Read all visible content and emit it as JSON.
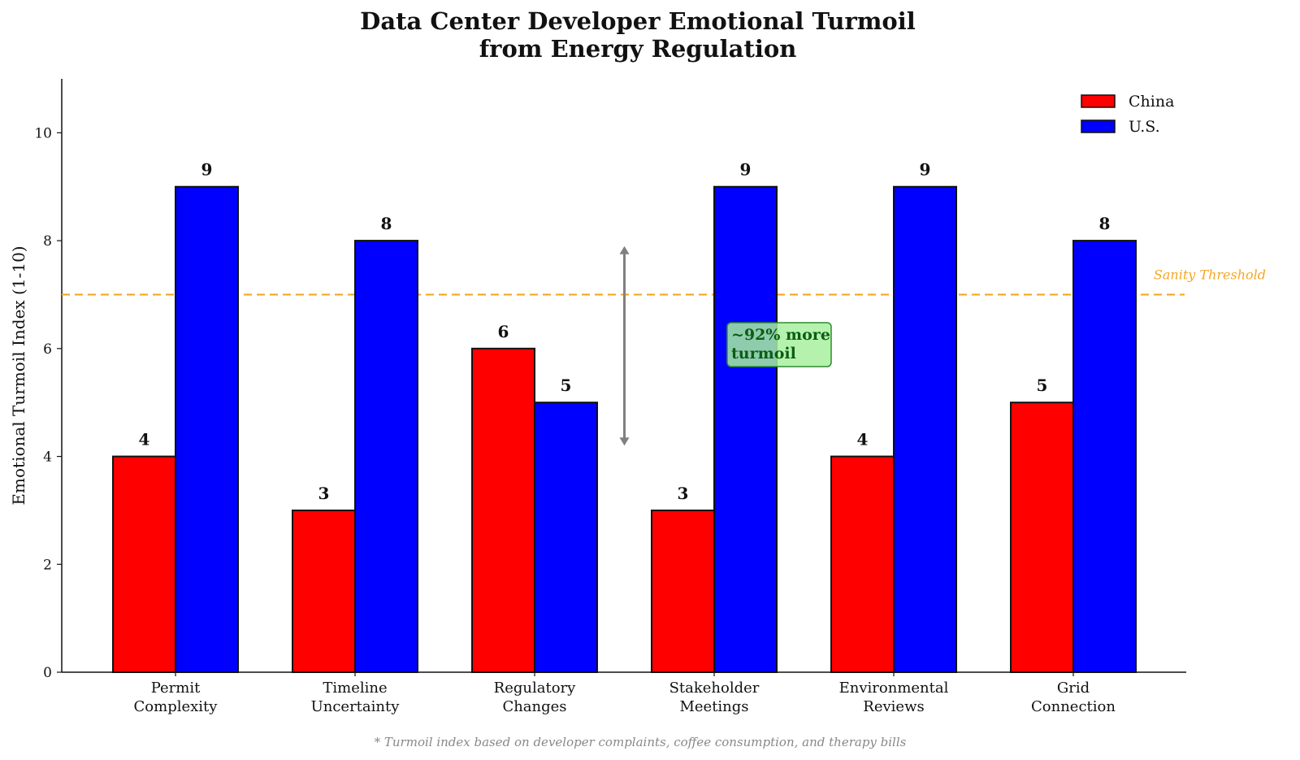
{
  "chart_data": {
    "type": "bar",
    "title_lines": [
      "Data Center Developer Emotional Turmoil",
      "from Energy Regulation"
    ],
    "xlabel": "",
    "ylabel": "Emotional Turmoil Index (1-10)",
    "ylim": [
      0,
      11
    ],
    "yticks": [
      0,
      2,
      4,
      6,
      8,
      10
    ],
    "categories": [
      [
        "Permit",
        "Complexity"
      ],
      [
        "Timeline",
        "Uncertainty"
      ],
      [
        "Regulatory",
        "Changes"
      ],
      [
        "Stakeholder",
        "Meetings"
      ],
      [
        "Environmental",
        "Reviews"
      ],
      [
        "Grid",
        "Connection"
      ]
    ],
    "series": [
      {
        "name": "China",
        "color": "#ff0000",
        "values": [
          4,
          3,
          6,
          3,
          4,
          5
        ]
      },
      {
        "name": "U.S.",
        "color": "#0000ff",
        "values": [
          9,
          8,
          5,
          9,
          9,
          8
        ]
      }
    ],
    "legend_position": "top-right",
    "threshold": {
      "value": 7,
      "label": "Sanity Threshold",
      "color": "#f5a623"
    },
    "arrow": {
      "category_gap_after": 2,
      "from": 4.2,
      "to": 7.9
    },
    "annotation": {
      "lines": [
        "~92% more",
        "turmoil"
      ],
      "bg": "#a8f0a0",
      "border": "#2e8b2e"
    },
    "footnote": "* Turmoil index based on developer complaints, coffee consumption, and therapy bills"
  }
}
